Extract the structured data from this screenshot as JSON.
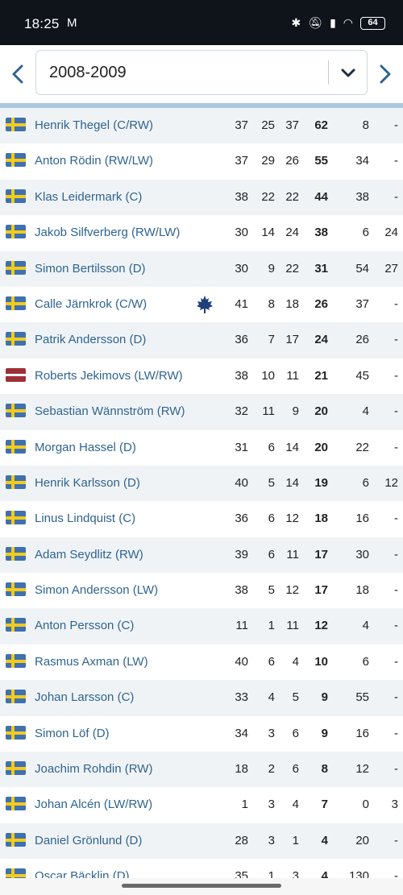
{
  "status_bar": {
    "time": "18:25",
    "mail_icon": "M",
    "battery": "64"
  },
  "season_selector": {
    "value": "2008-2009"
  },
  "colors": {
    "link": "#2f6491",
    "arrow": "#2f6491",
    "swe_blue": "#3f70b0",
    "swe_yellow": "#f2cb1b",
    "lat_red": "#9e2f38"
  },
  "rows": [
    {
      "flag": "swe",
      "player": "Henrik Thegel (C/RW)",
      "gp": "37",
      "g": "25",
      "a": "37",
      "tp": "62",
      "pim": "8",
      "pm": "-"
    },
    {
      "flag": "swe",
      "player": "Anton Rödin (RW/LW)",
      "gp": "37",
      "g": "29",
      "a": "26",
      "tp": "55",
      "pim": "34",
      "pm": "-"
    },
    {
      "flag": "swe",
      "player": "Klas Leidermark (C)",
      "gp": "38",
      "g": "22",
      "a": "22",
      "tp": "44",
      "pim": "38",
      "pm": "-"
    },
    {
      "flag": "swe",
      "player": "Jakob Silfverberg (RW/LW)",
      "gp": "30",
      "g": "14",
      "a": "24",
      "tp": "38",
      "pim": "6",
      "pm": "24"
    },
    {
      "flag": "swe",
      "player": "Simon Bertilsson (D)",
      "gp": "30",
      "g": "9",
      "a": "22",
      "tp": "31",
      "pim": "54",
      "pm": "27"
    },
    {
      "flag": "swe",
      "player": "Calle Järnkrok (C/W)",
      "gp": "41",
      "g": "8",
      "a": "18",
      "tp": "26",
      "pim": "37",
      "pm": "-",
      "team_logo": "maple-leaf-icon"
    },
    {
      "flag": "swe",
      "player": "Patrik Andersson (D)",
      "gp": "36",
      "g": "7",
      "a": "17",
      "tp": "24",
      "pim": "26",
      "pm": "-"
    },
    {
      "flag": "lat",
      "player": "Roberts Jekimovs (LW/RW)",
      "gp": "38",
      "g": "10",
      "a": "11",
      "tp": "21",
      "pim": "45",
      "pm": "-"
    },
    {
      "flag": "swe",
      "player": "Sebastian Wännström (RW)",
      "gp": "32",
      "g": "11",
      "a": "9",
      "tp": "20",
      "pim": "4",
      "pm": "-"
    },
    {
      "flag": "swe",
      "player": "Morgan Hassel (D)",
      "gp": "31",
      "g": "6",
      "a": "14",
      "tp": "20",
      "pim": "22",
      "pm": "-"
    },
    {
      "flag": "swe",
      "player": "Henrik Karlsson (D)",
      "gp": "40",
      "g": "5",
      "a": "14",
      "tp": "19",
      "pim": "6",
      "pm": "12"
    },
    {
      "flag": "swe",
      "player": "Linus Lindquist (C)",
      "gp": "36",
      "g": "6",
      "a": "12",
      "tp": "18",
      "pim": "16",
      "pm": "-"
    },
    {
      "flag": "swe",
      "player": "Adam Seydlitz (RW)",
      "gp": "39",
      "g": "6",
      "a": "11",
      "tp": "17",
      "pim": "30",
      "pm": "-"
    },
    {
      "flag": "swe",
      "player": "Simon Andersson (LW)",
      "gp": "38",
      "g": "5",
      "a": "12",
      "tp": "17",
      "pim": "18",
      "pm": "-"
    },
    {
      "flag": "swe",
      "player": "Anton Persson (C)",
      "gp": "11",
      "g": "1",
      "a": "11",
      "tp": "12",
      "pim": "4",
      "pm": "-"
    },
    {
      "flag": "swe",
      "player": "Rasmus Axman (LW)",
      "gp": "40",
      "g": "6",
      "a": "4",
      "tp": "10",
      "pim": "6",
      "pm": "-"
    },
    {
      "flag": "swe",
      "player": "Johan Larsson (C)",
      "gp": "33",
      "g": "4",
      "a": "5",
      "tp": "9",
      "pim": "55",
      "pm": "-"
    },
    {
      "flag": "swe",
      "player": "Simon Löf (D)",
      "gp": "34",
      "g": "3",
      "a": "6",
      "tp": "9",
      "pim": "16",
      "pm": "-"
    },
    {
      "flag": "swe",
      "player": "Joachim Rohdin (RW)",
      "gp": "18",
      "g": "2",
      "a": "6",
      "tp": "8",
      "pim": "12",
      "pm": "-"
    },
    {
      "flag": "swe",
      "player": "Johan Alcén (LW/RW)",
      "gp": "1",
      "g": "3",
      "a": "4",
      "tp": "7",
      "pim": "0",
      "pm": "3"
    },
    {
      "flag": "swe",
      "player": "Daniel Grönlund (D)",
      "gp": "28",
      "g": "3",
      "a": "1",
      "tp": "4",
      "pim": "20",
      "pm": "-"
    },
    {
      "flag": "swe",
      "player": "Oscar Bäcklin (D)",
      "gp": "35",
      "g": "1",
      "a": "3",
      "tp": "4",
      "pim": "130",
      "pm": "-"
    }
  ]
}
